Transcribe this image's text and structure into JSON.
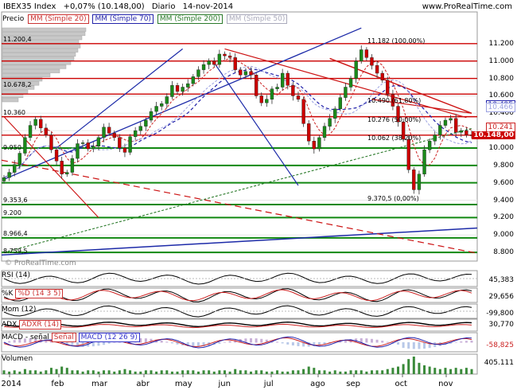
{
  "header": {
    "symbol": "IBEX35 Index",
    "change": "+0,07% (10.148,00)",
    "period": "Diario",
    "date": "14-nov-2014",
    "brand": "www.ProRealTime.com",
    "watermark": "© ProRealTime.com"
  },
  "legend": {
    "price": "Precio",
    "sma20": "MM (Simple 20)",
    "sma70": "MM (Simple 70)",
    "sma200": "MM (Simple 200)",
    "sma50": "MM (Simple 50)"
  },
  "colors": {
    "up": "#1a8a1a",
    "down": "#cc0000",
    "sma20": "#cc2222",
    "sma70": "#2222aa",
    "sma200": "#2a7a2a",
    "sma50": "#9aa0e0",
    "trend_blue": "#1c2aa8",
    "trend_red": "#cc1111",
    "volume": "#3a8a3a",
    "vol_profile": "#c8c8c8"
  },
  "chart_data": [
    {
      "type": "candlestick",
      "title": "IBEX35 Index",
      "months": [
        "2014",
        "feb",
        "mar",
        "abr",
        "may",
        "jun",
        "jul",
        "ago",
        "sep",
        "oct",
        "nov"
      ],
      "ylim": [
        8700,
        11400
      ],
      "yticks": [
        "11.200",
        "11.000",
        "10.800",
        "10.600",
        "10.400",
        "10.200",
        "10.000",
        "9.800",
        "9.600",
        "9.400",
        "9.200",
        "9.000",
        "8.800"
      ],
      "ytick_values": [
        11200,
        11000,
        10800,
        10600,
        10400,
        10200,
        10000,
        9800,
        9600,
        9400,
        9200,
        9000,
        8800
      ],
      "last_price": "10.148,00",
      "last_value": 10148,
      "ref_tags": [
        {
          "label": "10.495",
          "value": 10495,
          "color": "#2222aa"
        },
        {
          "label": "10.466",
          "value": 10466,
          "color": "#9aa0e0"
        },
        {
          "label": "10.241",
          "value": 10241,
          "color": "#cc2222"
        }
      ],
      "left_levels": [
        {
          "label": "11.200,4",
          "value": 11200
        },
        {
          "label": "10.678,2",
          "value": 10678
        },
        {
          "label": "10.360",
          "value": 10360
        },
        {
          "label": "9.950",
          "value": 9950
        },
        {
          "label": "9.353,6",
          "value": 9354
        },
        {
          "label": "9.200",
          "value": 9200
        },
        {
          "label": "8.966,4",
          "value": 8966
        },
        {
          "label": "8.759,5",
          "value": 8760
        }
      ],
      "fib_labels": [
        {
          "label": "11.182 (100,00%)",
          "value": 11182
        },
        {
          "label": "10.490 (61,80%)",
          "value": 10490
        },
        {
          "label": "10.276 (50,00%)",
          "value": 10276
        },
        {
          "label": "10.062 (38,20%)",
          "value": 10062
        },
        {
          "label": "9.370,5 (0,00%)",
          "value": 9370
        }
      ],
      "horizontal_levels_red": [
        11200,
        11000,
        10800,
        10620,
        10360,
        10148
      ],
      "horizontal_levels_green": [
        10000,
        9800,
        9600,
        9350,
        9200,
        8966,
        8800
      ],
      "close_path": [
        9660,
        9720,
        9810,
        9940,
        10120,
        10260,
        10330,
        10230,
        10150,
        9980,
        9850,
        9700,
        9720,
        9880,
        10050,
        10060,
        9990,
        10020,
        10120,
        10240,
        10170,
        10120,
        10000,
        9950,
        10130,
        10200,
        10250,
        10320,
        10420,
        10480,
        10510,
        10590,
        10720,
        10650,
        10700,
        10740,
        10820,
        10900,
        10960,
        11000,
        10960,
        11080,
        11060,
        11040,
        10900,
        10840,
        10880,
        10840,
        10600,
        10520,
        10560,
        10680,
        10700,
        10860,
        10720,
        10600,
        10560,
        10280,
        10080,
        9990,
        10120,
        10250,
        10340,
        10450,
        10580,
        10700,
        10800,
        11000,
        11130,
        11040,
        10950,
        10860,
        10780,
        10620,
        10480,
        10300,
        10100,
        9750,
        9520,
        9700,
        9980,
        10080,
        10150,
        10260,
        10320,
        10340,
        10180,
        10200,
        10150,
        10148
      ],
      "volume_unit": "405.111",
      "volume_values": [
        3,
        2,
        3,
        2,
        4,
        3,
        3,
        2,
        3,
        5,
        4,
        6,
        5,
        3,
        3,
        2,
        3,
        3,
        2,
        3,
        3,
        2,
        3,
        4,
        3,
        2,
        2,
        3,
        3,
        2,
        3,
        3,
        2,
        2,
        3,
        3,
        3,
        2,
        3,
        3,
        2,
        3,
        3,
        2,
        4,
        3,
        3,
        2,
        3,
        3,
        2,
        2,
        3,
        2,
        2,
        3,
        3,
        4,
        6,
        5,
        3,
        3,
        2,
        3,
        2,
        2,
        3,
        3,
        3,
        2,
        3,
        3,
        3,
        4,
        5,
        6,
        8,
        12,
        14,
        9,
        7,
        6,
        5,
        4,
        5,
        4,
        5,
        4,
        5,
        4
      ]
    }
  ],
  "indicators": [
    {
      "name": "RSI (14)",
      "tag": "",
      "value": "45,383",
      "color": "#000000"
    },
    {
      "name": "%K",
      "tag": "%D (14 3 5)",
      "value": "29,656",
      "color": "#000000"
    },
    {
      "name": "Mom (12)",
      "tag": "",
      "value": "-99,800",
      "color": "#000000"
    },
    {
      "name": "ADX",
      "tag": "ADXR (14)",
      "value": "30,770",
      "color": "#000000"
    },
    {
      "name": "MACD - señal",
      "tag": "Señal",
      "tag2": "MACD (12 26 9)",
      "value": "-58,825",
      "color": "#cc2222"
    },
    {
      "name": "Volumen",
      "tag": "",
      "value": "405.111",
      "color": "#000000"
    }
  ]
}
